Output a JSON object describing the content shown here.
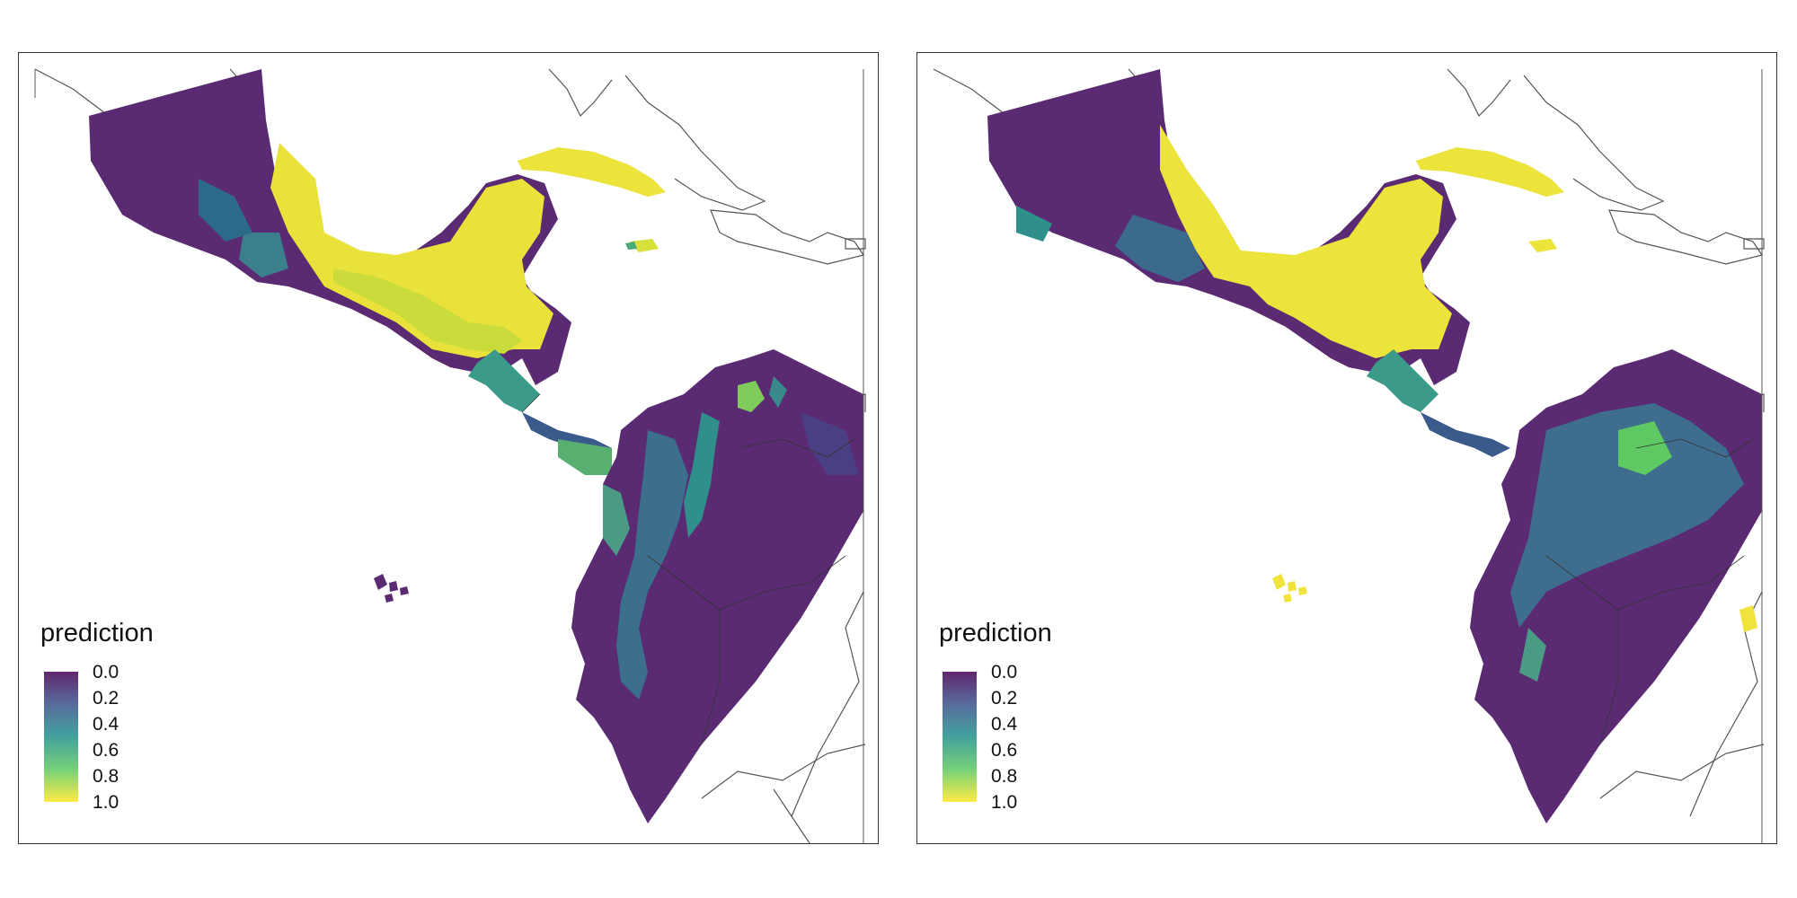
{
  "colors": {
    "low": "#5a2a73",
    "mid": "#2e7a8c",
    "high": "#f0e43c",
    "border": "#333333"
  },
  "panels": [
    {
      "legend": {
        "title": "prediction",
        "labels": [
          "0.0",
          "0.2",
          "0.4",
          "0.6",
          "0.8",
          "1.0"
        ]
      },
      "galapagos_prediction": 0.0
    },
    {
      "legend": {
        "title": "prediction",
        "labels": [
          "0.0",
          "0.2",
          "0.4",
          "0.6",
          "0.8",
          "1.0"
        ]
      },
      "galapagos_prediction": 1.0
    }
  ]
}
